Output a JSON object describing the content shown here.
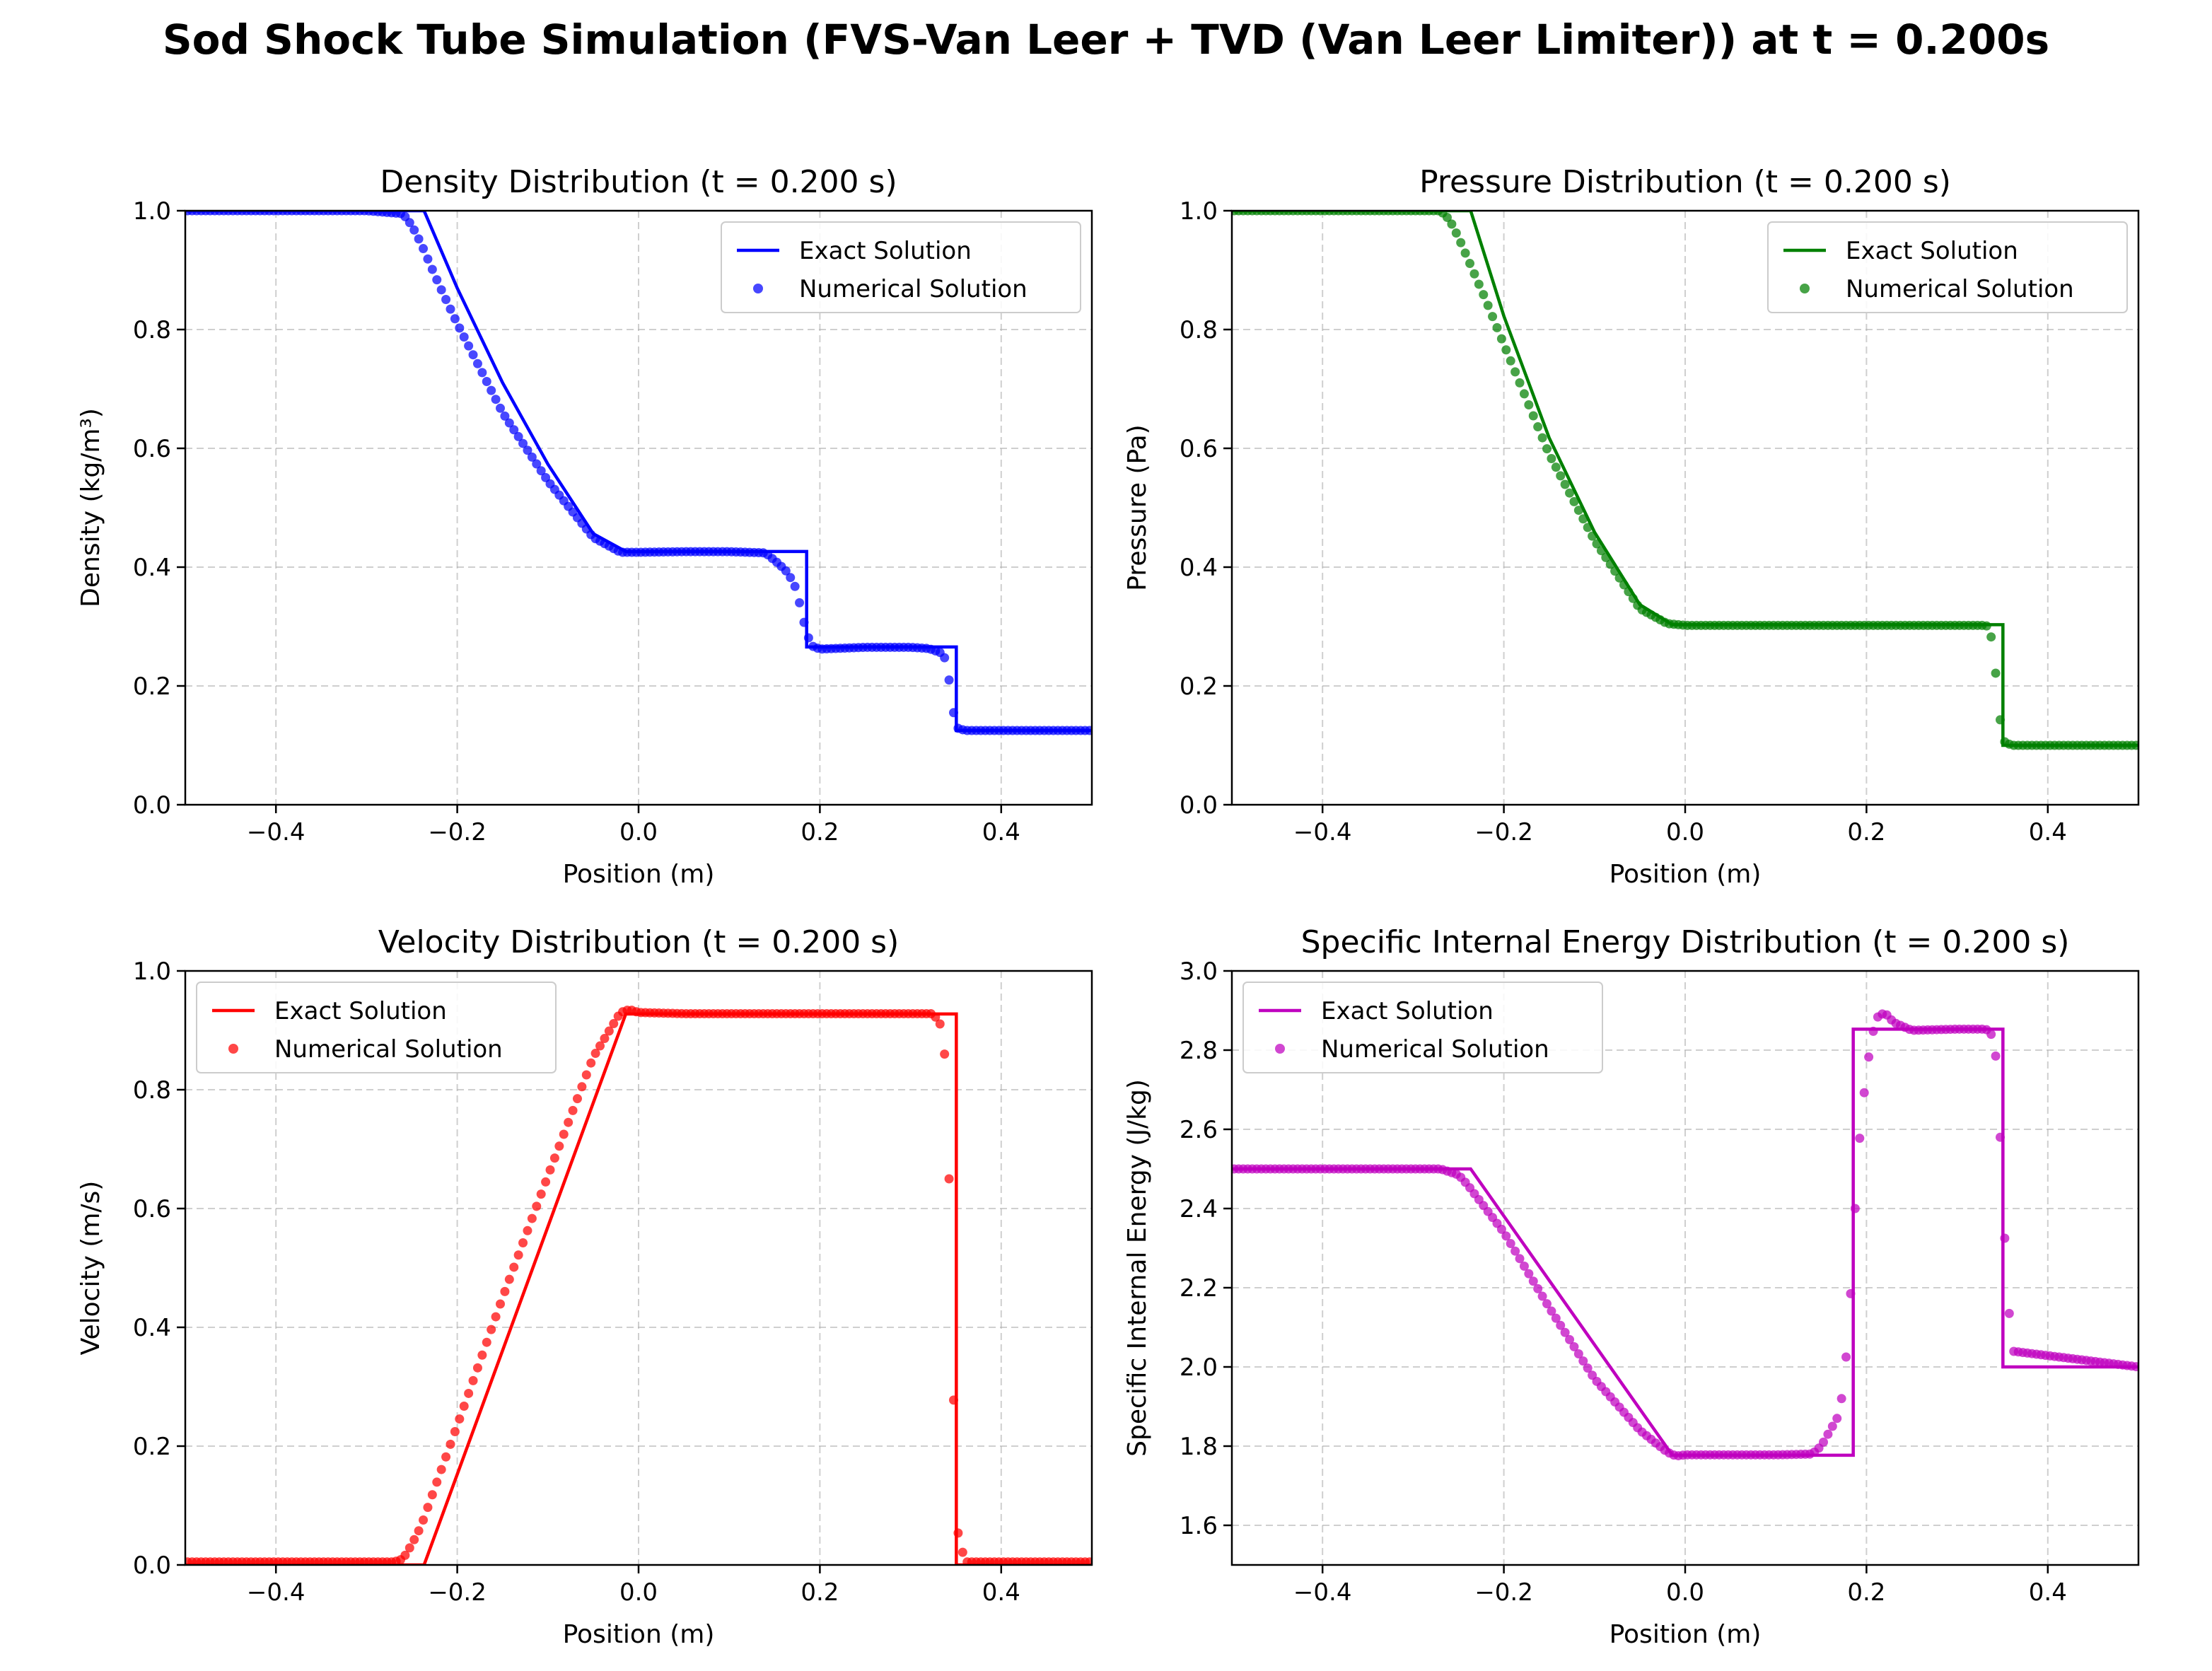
{
  "figure": {
    "title": "Sod Shock Tube Simulation (FVS-Van Leer + TVD (Van Leer Limiter)) at t = 0.200s"
  },
  "chart_data": [
    {
      "type": "line",
      "title": "Density Distribution (t = 0.200 s)",
      "xlabel": "Position (m)",
      "ylabel": "Density (kg/m³)",
      "xlim": [
        -0.5,
        0.5
      ],
      "ylim": [
        0.0,
        1.0
      ],
      "xticks": [
        -0.4,
        -0.2,
        0.0,
        0.2,
        0.4
      ],
      "yticks": [
        0.0,
        0.2,
        0.4,
        0.6,
        0.8,
        1.0
      ],
      "grid": true,
      "legend": "top-right",
      "color": "#0000ff",
      "series": [
        {
          "name": "Exact Solution",
          "kind": "line",
          "x": [
            -0.5,
            -0.2366,
            -0.2,
            -0.15,
            -0.1,
            -0.05,
            -0.0141,
            0.1854,
            0.1854,
            0.3505,
            0.3505,
            0.5
          ],
          "y": [
            1.0,
            1.0,
            0.8697,
            0.7105,
            0.5733,
            0.4563,
            0.4263,
            0.4263,
            0.2656,
            0.2656,
            0.125,
            0.125
          ]
        },
        {
          "name": "Numerical Solution",
          "kind": "scatter",
          "x": [
            -0.5,
            -0.3,
            -0.26,
            -0.25,
            -0.24,
            -0.23,
            -0.22,
            -0.2,
            -0.15,
            -0.1,
            -0.05,
            -0.02,
            0.0,
            0.05,
            0.1,
            0.14,
            0.155,
            0.165,
            0.175,
            0.18,
            0.19,
            0.2,
            0.25,
            0.3,
            0.32,
            0.335,
            0.34,
            0.345,
            0.35,
            0.36,
            0.5
          ],
          "y": [
            1.0,
            1.0,
            0.995,
            0.975,
            0.945,
            0.91,
            0.875,
            0.81,
            0.66,
            0.545,
            0.45,
            0.425,
            0.425,
            0.426,
            0.426,
            0.424,
            0.405,
            0.39,
            0.36,
            0.32,
            0.268,
            0.262,
            0.265,
            0.265,
            0.263,
            0.255,
            0.24,
            0.18,
            0.13,
            0.125,
            0.125
          ]
        }
      ]
    },
    {
      "type": "line",
      "title": "Pressure Distribution (t = 0.200 s)",
      "xlabel": "Position (m)",
      "ylabel": "Pressure (Pa)",
      "xlim": [
        -0.5,
        0.5
      ],
      "ylim": [
        0.0,
        1.0
      ],
      "xticks": [
        -0.4,
        -0.2,
        0.0,
        0.2,
        0.4
      ],
      "yticks": [
        0.0,
        0.2,
        0.4,
        0.6,
        0.8,
        1.0
      ],
      "grid": true,
      "legend": "top-right",
      "color": "#008000",
      "series": [
        {
          "name": "Exact Solution",
          "kind": "line",
          "x": [
            -0.5,
            -0.2366,
            -0.2,
            -0.15,
            -0.1,
            -0.05,
            -0.0141,
            0.3505,
            0.3505,
            0.5
          ],
          "y": [
            1.0,
            1.0,
            0.8228,
            0.6176,
            0.4589,
            0.3368,
            0.3031,
            0.3031,
            0.1,
            0.1
          ]
        },
        {
          "name": "Numerical Solution",
          "kind": "scatter",
          "x": [
            -0.5,
            -0.27,
            -0.26,
            -0.25,
            -0.24,
            -0.22,
            -0.2,
            -0.15,
            -0.1,
            -0.05,
            -0.02,
            0.0,
            0.1,
            0.2,
            0.3,
            0.33,
            0.335,
            0.34,
            0.345,
            0.35,
            0.36,
            0.5
          ],
          "y": [
            1.0,
            1.0,
            0.985,
            0.955,
            0.92,
            0.85,
            0.775,
            0.59,
            0.445,
            0.33,
            0.305,
            0.302,
            0.302,
            0.302,
            0.302,
            0.302,
            0.3,
            0.265,
            0.178,
            0.108,
            0.1,
            0.1
          ]
        }
      ]
    },
    {
      "type": "line",
      "title": "Velocity Distribution (t = 0.200 s)",
      "xlabel": "Position (m)",
      "ylabel": "Velocity (m/s)",
      "xlim": [
        -0.5,
        0.5
      ],
      "ylim": [
        0.0,
        1.0
      ],
      "xticks": [
        -0.4,
        -0.2,
        0.0,
        0.2,
        0.4
      ],
      "yticks": [
        0.0,
        0.2,
        0.4,
        0.6,
        0.8,
        1.0
      ],
      "grid": true,
      "legend": "top-left",
      "color": "#ff0000",
      "series": [
        {
          "name": "Exact Solution",
          "kind": "line",
          "x": [
            -0.5,
            -0.2366,
            -0.0141,
            0.3505,
            0.3505,
            0.5
          ],
          "y": [
            0.0,
            0.0,
            0.9275,
            0.9275,
            0.0,
            0.0
          ]
        },
        {
          "name": "Numerical Solution",
          "kind": "scatter",
          "x": [
            -0.5,
            -0.27,
            -0.26,
            -0.25,
            -0.24,
            -0.2,
            -0.15,
            -0.1,
            -0.05,
            -0.02,
            -0.01,
            0.0,
            0.05,
            0.1,
            0.2,
            0.3,
            0.325,
            0.335,
            0.34,
            0.345,
            0.35,
            0.36,
            0.5
          ],
          "y": [
            0.005,
            0.005,
            0.01,
            0.035,
            0.065,
            0.235,
            0.45,
            0.655,
            0.855,
            0.93,
            0.935,
            0.93,
            0.928,
            0.928,
            0.928,
            0.928,
            0.928,
            0.905,
            0.815,
            0.485,
            0.07,
            0.005,
            0.005
          ]
        }
      ]
    },
    {
      "type": "line",
      "title": "Specific Internal Energy Distribution (t = 0.200 s)",
      "xlabel": "Position (m)",
      "ylabel": "Specific Internal Energy (J/kg)",
      "xlim": [
        -0.5,
        0.5
      ],
      "ylim": [
        1.5,
        3.0
      ],
      "xticks": [
        -0.4,
        -0.2,
        0.0,
        0.2,
        0.4
      ],
      "yticks": [
        1.6,
        1.8,
        2.0,
        2.2,
        2.4,
        2.6,
        2.8,
        3.0
      ],
      "grid": true,
      "legend": "top-left",
      "color": "#bf00bf",
      "series": [
        {
          "name": "Exact Solution",
          "kind": "line",
          "x": [
            -0.5,
            -0.2366,
            -0.0141,
            0.1854,
            0.1854,
            0.3505,
            0.3505,
            0.5
          ],
          "y": [
            2.5,
            2.5,
            1.777,
            1.777,
            2.853,
            2.853,
            2.0,
            2.0
          ]
        },
        {
          "name": "Numerical Solution",
          "kind": "scatter",
          "x": [
            -0.5,
            -0.27,
            -0.25,
            -0.24,
            -0.2,
            -0.15,
            -0.1,
            -0.05,
            -0.02,
            -0.01,
            0.0,
            0.1,
            0.14,
            0.15,
            0.16,
            0.17,
            0.175,
            0.18,
            0.185,
            0.19,
            0.2,
            0.21,
            0.22,
            0.23,
            0.25,
            0.3,
            0.33,
            0.335,
            0.34,
            0.345,
            0.35,
            0.36,
            0.5
          ],
          "y": [
            2.5,
            2.5,
            2.485,
            2.46,
            2.34,
            2.15,
            1.97,
            1.84,
            1.785,
            1.775,
            1.778,
            1.778,
            1.78,
            1.8,
            1.84,
            1.88,
            1.96,
            2.09,
            2.28,
            2.52,
            2.75,
            2.88,
            2.895,
            2.87,
            2.85,
            2.853,
            2.853,
            2.85,
            2.83,
            2.74,
            2.42,
            2.04,
            2.0
          ]
        }
      ]
    }
  ]
}
